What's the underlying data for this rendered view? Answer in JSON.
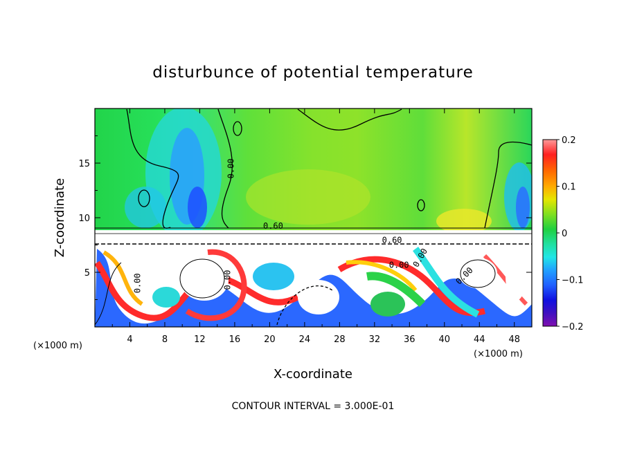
{
  "chart_data": {
    "type": "heatmap",
    "title": "disturbunce of potential temperature",
    "xlabel": "X-coordinate",
    "ylabel": "Z-coordinate",
    "x_unit": "(×1000 m)",
    "z_unit": "(×1000 m)",
    "xlim": [
      0,
      50
    ],
    "ylim": [
      0,
      20
    ],
    "x_ticks": [
      4,
      8,
      12,
      16,
      20,
      24,
      28,
      32,
      36,
      40,
      44,
      48
    ],
    "y_ticks": [
      5,
      10,
      15
    ],
    "colorbar": {
      "range": [
        -0.2,
        0.2
      ],
      "tick_values": [
        0.2,
        0.1,
        0,
        -0.1,
        -0.2
      ],
      "tick_labels": [
        "0.2",
        "0.1",
        "0",
        "−0.1",
        "−0.2"
      ]
    },
    "contour_interval_text": "CONTOUR INTERVAL = 3.000E-01",
    "contour_labels": [
      {
        "text": "0.00",
        "x": 15.9,
        "z": 14.5,
        "rotate": -90
      },
      {
        "text": "0.60",
        "x": 20.4,
        "z": 9.0,
        "rotate": 0
      },
      {
        "text": "0.60",
        "x": 34.0,
        "z": 7.7,
        "rotate": 0
      },
      {
        "text": "0.00",
        "x": 34.8,
        "z": 5.4,
        "rotate": 0
      },
      {
        "text": "0.00",
        "x": 37.5,
        "z": 6.2,
        "rotate": -60
      },
      {
        "text": "0.00",
        "x": 42.5,
        "z": 4.5,
        "rotate": -45
      },
      {
        "text": "0.00",
        "x": 5.2,
        "z": 4.0,
        "rotate": -90
      },
      {
        "text": "0.00",
        "x": 15.5,
        "z": 4.3,
        "rotate": -90
      }
    ]
  }
}
